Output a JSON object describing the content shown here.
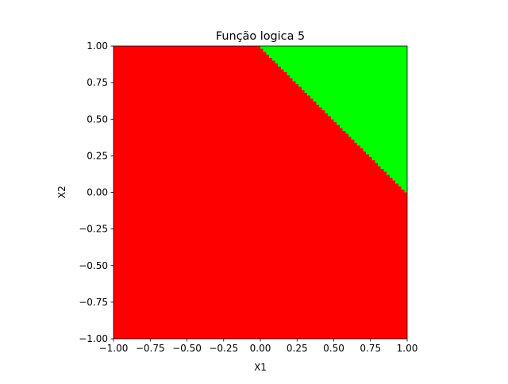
{
  "chart_data": {
    "type": "heatmap",
    "title": "Função logica 5",
    "xlabel": "X1",
    "ylabel": "X2",
    "xlim": [
      -1.0,
      1.0
    ],
    "ylim": [
      -1.0,
      1.0
    ],
    "xticks": [
      "−1.00",
      "−0.75",
      "−0.50",
      "−0.25",
      "0.00",
      "0.25",
      "0.50",
      "0.75",
      "1.00"
    ],
    "yticks": [
      "−1.00",
      "−0.75",
      "−0.50",
      "−0.25",
      "0.00",
      "0.25",
      "0.50",
      "0.75",
      "1.00"
    ],
    "xtick_values": [
      -1.0,
      -0.75,
      -0.5,
      -0.25,
      0.0,
      0.25,
      0.5,
      0.75,
      1.0
    ],
    "ytick_values": [
      -1.0,
      -0.75,
      -0.5,
      -0.25,
      0.0,
      0.25,
      0.5,
      0.75,
      1.0
    ],
    "grid": false,
    "regions": [
      {
        "class": 0,
        "color": "#ff0000",
        "rule": "x1 + x2 <= 1"
      },
      {
        "class": 1,
        "color": "#00ff00",
        "rule": "x1 + x2 > 1"
      }
    ],
    "boundary": {
      "x1": [
        0.0,
        1.0
      ],
      "x2": [
        1.0,
        0.0
      ]
    }
  }
}
